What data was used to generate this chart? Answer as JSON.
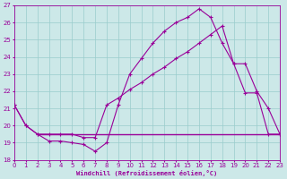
{
  "xlabel": "Windchill (Refroidissement éolien,°C)",
  "bg_color": "#cce8e8",
  "grid_color": "#99cccc",
  "line_color": "#990099",
  "ylim": [
    18,
    27
  ],
  "xlim": [
    0,
    23
  ],
  "yticks": [
    18,
    19,
    20,
    21,
    22,
    23,
    24,
    25,
    26,
    27
  ],
  "xticks": [
    0,
    1,
    2,
    3,
    4,
    5,
    6,
    7,
    8,
    9,
    10,
    11,
    12,
    13,
    14,
    15,
    16,
    17,
    18,
    19,
    20,
    21,
    22,
    23
  ],
  "curve1_x": [
    0,
    1,
    2,
    3,
    4,
    5,
    6,
    7,
    8,
    9,
    10,
    11,
    12,
    13,
    14,
    15,
    16,
    17,
    18,
    19,
    20,
    21,
    22,
    23
  ],
  "curve1_y": [
    21.2,
    20.0,
    19.5,
    19.1,
    19.1,
    19.0,
    18.9,
    18.5,
    19.0,
    21.2,
    23.0,
    23.9,
    24.8,
    25.5,
    26.0,
    26.3,
    26.8,
    26.3,
    24.8,
    23.6,
    21.9,
    21.9,
    19.5,
    19.5
  ],
  "curve2_x": [
    0,
    1,
    2,
    3,
    4,
    5,
    6,
    7,
    8,
    9,
    10,
    11,
    12,
    13,
    14,
    15,
    16,
    17,
    18,
    19,
    20,
    21,
    22,
    23
  ],
  "curve2_y": [
    21.2,
    20.0,
    19.5,
    19.5,
    19.5,
    19.5,
    19.3,
    19.3,
    21.2,
    21.6,
    22.1,
    22.5,
    23.0,
    23.4,
    23.9,
    24.3,
    24.8,
    25.3,
    25.8,
    23.6,
    23.6,
    22.0,
    21.0,
    19.5
  ],
  "hline_y": 19.5,
  "hline_x_start": 2,
  "hline_x_end": 23
}
